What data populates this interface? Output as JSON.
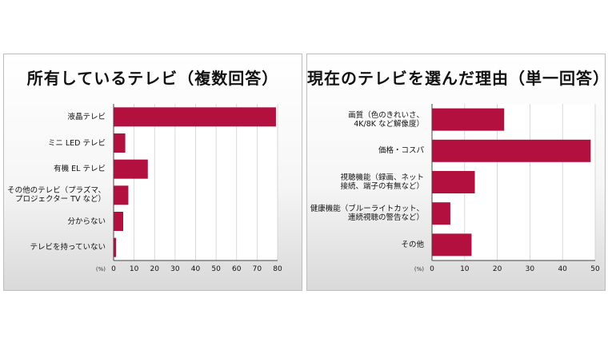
{
  "chart_data": [
    {
      "type": "bar",
      "orientation": "horizontal",
      "title": "所有しているテレビ（複数回答）",
      "categories": [
        "液晶テレビ",
        "ミニ LED テレビ",
        "有機 EL テレビ",
        "その他のテレビ（プラズマ、\nプロジェクター TV など）",
        "分からない",
        "テレビを持っていない"
      ],
      "values": [
        79,
        5.5,
        16.5,
        7,
        4.5,
        1
      ],
      "xlim": [
        0,
        80
      ],
      "ticks": [
        "0",
        "10",
        "20",
        "30",
        "40",
        "50",
        "60",
        "70",
        "80"
      ],
      "unit": "(%)",
      "grid": true,
      "bar_color": "#b3103f"
    },
    {
      "type": "bar",
      "orientation": "horizontal",
      "title": "現在のテレビを選んだ理由（単一回答）",
      "categories": [
        "画質（色のきれいさ、\n4K/8K など解像度）",
        "価格・コスパ",
        "視聴機能（録画、ネット\n接続、端子の有無など）",
        "健康機能（ブルーライトカット、\n連続視聴の警告など）",
        "その他"
      ],
      "values": [
        22,
        48.5,
        13,
        5.5,
        12
      ],
      "xlim": [
        0,
        50
      ],
      "ticks": [
        "0",
        "10",
        "20",
        "30",
        "40",
        "50"
      ],
      "unit": "(%)",
      "grid": true,
      "bar_color": "#b3103f"
    }
  ]
}
